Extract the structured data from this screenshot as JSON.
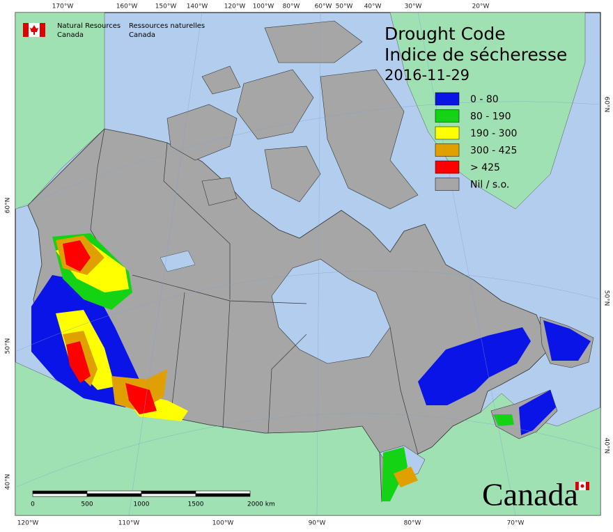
{
  "agency": {
    "english": [
      "Natural Resources",
      "Canada"
    ],
    "french": [
      "Ressources naturelles",
      "Canada"
    ]
  },
  "title": {
    "lines": [
      "Drought Code",
      "Indice de sécheresse"
    ],
    "date": "2016-11-29"
  },
  "legend": [
    {
      "label": "0 - 80",
      "color": "#0a14e6"
    },
    {
      "label": "80 - 190",
      "color": "#14d214"
    },
    {
      "label": "190 - 300",
      "color": "#ffff00"
    },
    {
      "label": "300 - 425",
      "color": "#e0a000"
    },
    {
      "label": "> 425",
      "color": "#ff0000"
    },
    {
      "label": "Nil / s.o.",
      "color": "#a6a6a6"
    }
  ],
  "graticule": {
    "top": [
      "170°W",
      "160°W",
      "150°W",
      "140°W",
      "120°W",
      "100°W",
      "80°W",
      "60°W",
      "50°W",
      "40°W",
      "30°W",
      "20°W"
    ],
    "bottom": [
      "120°W",
      "110°W",
      "100°W",
      "90°W",
      "80°W",
      "70°W"
    ],
    "left": [
      "60°N",
      "50°N",
      "40°N"
    ],
    "right": [
      "60°N",
      "50°N",
      "40°N"
    ]
  },
  "scale_bar": {
    "labels": [
      "0",
      "500",
      "1000",
      "1500",
      "2000 km"
    ]
  },
  "wordmark": "Canada"
}
